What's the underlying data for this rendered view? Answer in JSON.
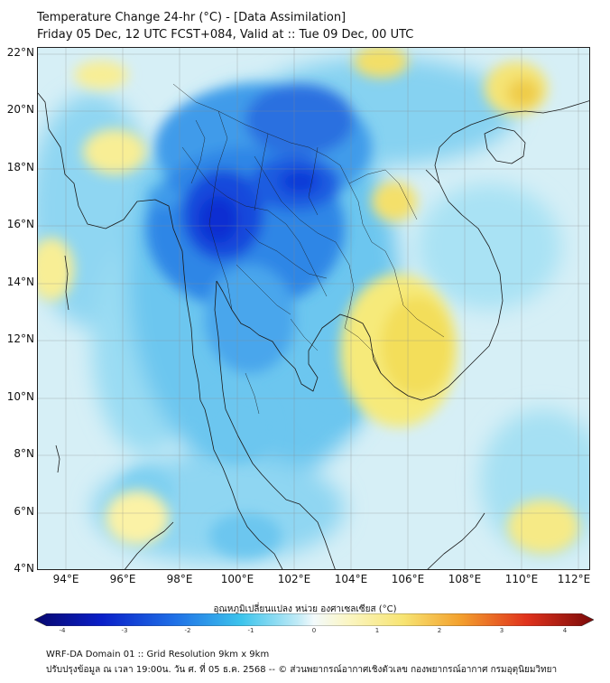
{
  "header": {
    "title_line1": "Temperature Change 24-hr (°C) - [Data Assimilation]",
    "title_line2": "Friday 05 Dec, 12 UTC FCST+084, Valid at :: Tue 09 Dec, 00 UTC"
  },
  "map": {
    "lat_labels": [
      "22°N",
      "20°N",
      "18°N",
      "16°N",
      "14°N",
      "12°N",
      "10°N",
      "8°N",
      "6°N",
      "4°N"
    ],
    "lon_labels": [
      "94°E",
      "96°E",
      "98°E",
      "100°E",
      "102°E",
      "104°E",
      "106°E",
      "108°E",
      "110°E",
      "112°E"
    ],
    "lat_range": [
      4,
      22.25
    ],
    "lon_range": [
      93.0,
      112.4
    ]
  },
  "colorbar": {
    "label": "อุณหภูมิเปลี่ยนแปลง หน่วย องศาเซลเซียส (°C)",
    "ticks": [
      "-4",
      "-3",
      "-2",
      "-1",
      "0",
      "1",
      "2",
      "3",
      "4"
    ],
    "range": [
      -4,
      4
    ]
  },
  "footer": {
    "line1": "WRF-DA Domain 01 :: Grid Resolution 9km x 9km",
    "line2": "ปรับปรุงข้อมูล ณ เวลา 19:00น. วัน ศ. ที่ 05 ธ.ค. 2568 -- © ส่วนพยากรณ์อากาศเชิงตัวเลข กองพยากรณ์อากาศ กรมอุตุนิยมวิทยา"
  },
  "colors": {
    "deep_cold": "#0a2fd6",
    "mid_cold": "#2f8fe8",
    "light_cold": "#7fd2f2",
    "neutral": "#d8f0f6",
    "warm": "#f7eb7a",
    "warmer": "#f2d54b"
  }
}
